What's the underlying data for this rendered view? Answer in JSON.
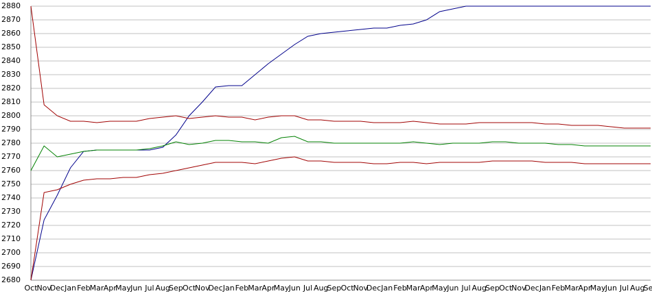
{
  "chart_data": {
    "type": "line",
    "categories": [
      "Oct",
      "Nov",
      "Dec",
      "Jan",
      "Feb",
      "Mar",
      "Apr",
      "May",
      "Jun",
      "Jul",
      "Aug",
      "Sep",
      "Oct",
      "Nov",
      "Dec",
      "Jan",
      "Feb",
      "Mar",
      "Apr",
      "May",
      "Jun",
      "Jul",
      "Aug",
      "Sep",
      "Oct",
      "Nov",
      "Dec",
      "Jan",
      "Feb",
      "Mar",
      "Apr",
      "May",
      "Jun",
      "Jul",
      "Aug",
      "Sep",
      "Oct",
      "Nov",
      "Dec",
      "Jan",
      "Feb",
      "Mar",
      "Apr",
      "May",
      "Jun",
      "Jul",
      "Aug",
      "Sep"
    ],
    "series": [
      {
        "color": "#00008b",
        "values": [
          2680,
          2724,
          2742,
          2762,
          2774,
          2775,
          2775,
          2775,
          2775,
          2775,
          2777,
          2786,
          2800,
          2810,
          2821,
          2822,
          2822,
          2830,
          2838,
          2845,
          2852,
          2858,
          2860,
          2861,
          2862,
          2863,
          2864,
          2864,
          2866,
          2867,
          2870,
          2876,
          2878,
          2880,
          2880,
          2880,
          2880,
          2880,
          2880,
          2880,
          2880,
          2880,
          2880,
          2880,
          2880,
          2880,
          2880,
          2880
        ]
      },
      {
        "color": "#a00000",
        "values": [
          2880,
          2808,
          2800,
          2796,
          2796,
          2795,
          2796,
          2796,
          2796,
          2798,
          2799,
          2800,
          2798,
          2799,
          2800,
          2799,
          2799,
          2797,
          2799,
          2800,
          2800,
          2797,
          2797,
          2796,
          2796,
          2796,
          2795,
          2795,
          2795,
          2796,
          2795,
          2794,
          2794,
          2794,
          2795,
          2795,
          2795,
          2795,
          2795,
          2794,
          2794,
          2793,
          2793,
          2793,
          2792,
          2791,
          2791,
          2791
        ]
      },
      {
        "color": "#008000",
        "values": [
          2760,
          2778,
          2770,
          2772,
          2774,
          2775,
          2775,
          2775,
          2775,
          2776,
          2778,
          2781,
          2779,
          2780,
          2782,
          2782,
          2781,
          2781,
          2780,
          2784,
          2785,
          2781,
          2781,
          2780,
          2780,
          2780,
          2780,
          2780,
          2780,
          2781,
          2780,
          2779,
          2780,
          2780,
          2780,
          2781,
          2781,
          2780,
          2780,
          2780,
          2779,
          2779,
          2778,
          2778,
          2778,
          2778,
          2778,
          2778
        ]
      },
      {
        "color": "#a00000",
        "values": [
          2680,
          2744,
          2746,
          2750,
          2753,
          2754,
          2754,
          2755,
          2755,
          2757,
          2758,
          2760,
          2762,
          2764,
          2766,
          2766,
          2766,
          2765,
          2767,
          2769,
          2770,
          2767,
          2767,
          2766,
          2766,
          2766,
          2765,
          2765,
          2766,
          2766,
          2765,
          2766,
          2766,
          2766,
          2766,
          2767,
          2767,
          2767,
          2767,
          2766,
          2766,
          2766,
          2765,
          2765,
          2765,
          2765,
          2765,
          2765
        ]
      }
    ],
    "ylim": [
      2680,
      2880
    ],
    "yticks": [
      2680,
      2690,
      2700,
      2710,
      2720,
      2730,
      2740,
      2750,
      2760,
      2770,
      2780,
      2790,
      2800,
      2810,
      2820,
      2830,
      2840,
      2850,
      2860,
      2870,
      2880
    ],
    "grid": true
  }
}
